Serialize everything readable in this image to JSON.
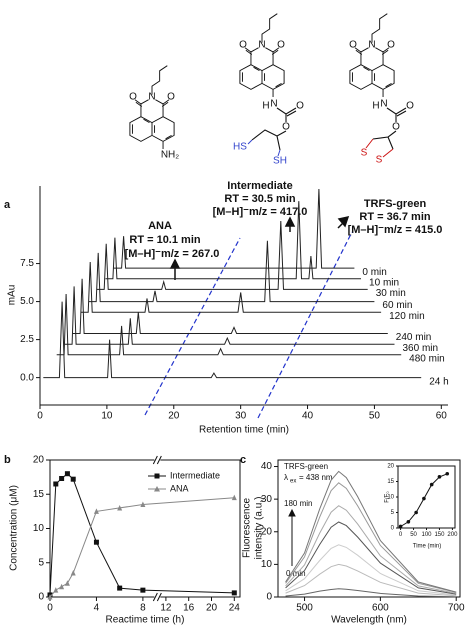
{
  "structures": [
    {
      "labels": [
        "O",
        "N",
        "O",
        "NH₂"
      ]
    },
    {
      "labels": [
        "O",
        "N",
        "O",
        "H",
        "N",
        "O",
        "O",
        "HS",
        "SH"
      ]
    },
    {
      "labels": [
        "O",
        "N",
        "O",
        "H",
        "N",
        "O",
        "O",
        "S",
        "S"
      ]
    }
  ],
  "chart_data": [
    {
      "type": "line",
      "panel": "a",
      "xlabel": "Retention time (min)",
      "ylabel": "mAu",
      "xlim": [
        0,
        61
      ],
      "xticks": [
        0,
        10,
        20,
        30,
        40,
        50,
        60
      ],
      "ylim": [
        -1.8,
        12.6
      ],
      "yticks": [
        {
          "value": 0,
          "label": "0.0"
        },
        {
          "value": 2.5,
          "label": "2.5"
        },
        {
          "value": 5,
          "label": "5.0"
        },
        {
          "value": 7.5,
          "label": "7.5"
        }
      ],
      "legend": "line-end",
      "frame": false,
      "annotations": [
        {
          "title": "ANA",
          "rt": "RT = 10.1 min",
          "mz": "[M–H]⁻m/z  = 267.0"
        },
        {
          "title": "Intermediate",
          "rt": "RT = 30.5 min",
          "mz": "[M–H]⁻m/z = 417.0"
        },
        {
          "title": "TRFS-green",
          "rt": "RT = 36.7 min",
          "mz": "[M–H]⁻m/z = 415.0"
        }
      ],
      "series": [
        {
          "name": "0 min",
          "color": "#222",
          "x": [
            11.0,
            12.2,
            12.5,
            12.8,
            41.3,
            41.7,
            42.1,
            47.0
          ],
          "values": [
            7.2,
            7.2,
            9.3,
            7.2,
            7.2,
            12.4,
            7.2,
            7.2
          ]
        },
        {
          "name": "10 min",
          "color": "#222",
          "x": [
            9.8,
            10.9,
            11.2,
            11.5,
            38.3,
            38.7,
            39.1,
            40.2,
            40.5,
            40.8,
            48.0
          ],
          "values": [
            6.5,
            6.5,
            9.2,
            6.5,
            6.5,
            11.6,
            6.5,
            6.5,
            8.0,
            6.5,
            6.5
          ]
        },
        {
          "name": "30 min",
          "color": "#222",
          "x": [
            8.5,
            9.6,
            9.9,
            10.2,
            18.2,
            18.5,
            18.8,
            35.6,
            36.0,
            36.4,
            49.0
          ],
          "values": [
            5.8,
            5.8,
            8.8,
            5.8,
            5.8,
            6.3,
            5.8,
            5.8,
            10.3,
            5.8,
            5.8
          ]
        },
        {
          "name": "60 min",
          "color": "#222",
          "x": [
            7.3,
            8.4,
            8.7,
            9.0,
            16.9,
            17.2,
            17.5,
            33.6,
            34.0,
            34.4,
            50.0
          ],
          "values": [
            5.0,
            5.0,
            8.2,
            5.0,
            5.0,
            5.7,
            5.0,
            5.0,
            9.0,
            5.0,
            5.0
          ]
        },
        {
          "name": "120 min",
          "color": "#222",
          "x": [
            6.1,
            7.2,
            7.5,
            7.8,
            15.7,
            16.0,
            16.3,
            29.6,
            30.0,
            30.4,
            51.0
          ],
          "values": [
            4.3,
            4.3,
            7.6,
            4.3,
            4.3,
            5.2,
            4.3,
            4.3,
            5.6,
            4.3,
            4.3
          ]
        },
        {
          "name": "240 min",
          "color": "#222",
          "x": [
            4.9,
            6.0,
            6.3,
            6.6,
            14.4,
            14.7,
            15.0,
            28.6,
            29.0,
            29.4,
            52.0
          ],
          "values": [
            2.9,
            2.9,
            6.5,
            2.9,
            2.9,
            4.3,
            2.9,
            2.9,
            3.3,
            2.9,
            2.9
          ]
        },
        {
          "name": "360 min",
          "color": "#222",
          "x": [
            3.7,
            4.8,
            5.1,
            5.4,
            13.2,
            13.5,
            13.8,
            27.6,
            28.0,
            28.4,
            53.0
          ],
          "values": [
            2.2,
            2.2,
            6.0,
            2.2,
            2.2,
            3.9,
            2.2,
            2.2,
            2.6,
            2.2,
            2.2
          ]
        },
        {
          "name": "480 min",
          "color": "#222",
          "x": [
            2.5,
            3.6,
            3.9,
            4.2,
            11.9,
            12.2,
            12.5,
            26.6,
            27.0,
            27.4,
            54.0
          ],
          "values": [
            1.5,
            1.5,
            5.5,
            1.5,
            1.5,
            3.4,
            1.5,
            1.5,
            1.9,
            1.5,
            1.5
          ]
        },
        {
          "name": "24 h",
          "color": "#222",
          "x": [
            0.5,
            2.9,
            3.3,
            3.7,
            10.1,
            10.4,
            10.7,
            25.6,
            26.0,
            26.4,
            57.0
          ],
          "values": [
            0,
            0,
            5.0,
            0,
            0,
            2.5,
            0,
            0,
            0.3,
            0,
            0
          ]
        }
      ]
    },
    {
      "type": "line",
      "panel": "b",
      "xlabel": "Reactime time (h)",
      "ylabel": "Concentration (μM)",
      "xlim": [
        0,
        25
      ],
      "xbreak": [
        9,
        11
      ],
      "xticks": [
        0,
        4,
        8,
        12,
        16,
        20,
        24
      ],
      "ylim": [
        0,
        20
      ],
      "yticks": [
        0,
        5,
        10,
        15,
        20
      ],
      "legend": "upper right",
      "frame": true,
      "series": [
        {
          "name": "Intermediate",
          "color": "#111",
          "marker": "s",
          "x": [
            0,
            0.5,
            1,
            1.5,
            2,
            4,
            6,
            8,
            24
          ],
          "values": [
            0.3,
            16.5,
            17.3,
            18,
            17.2,
            8,
            1.3,
            1.0,
            0.6
          ]
        },
        {
          "name": "ANA",
          "color": "#888",
          "marker": "^",
          "x": [
            0,
            0.5,
            1,
            1.5,
            2,
            4,
            6,
            8,
            24
          ],
          "values": [
            0,
            1,
            1.5,
            2,
            3.5,
            12.5,
            13,
            13.5,
            14.5
          ]
        }
      ]
    },
    {
      "type": "line",
      "panel": "c",
      "xlabel": "Wavelength (nm)",
      "ylabel": [
        "Fluorescence",
        "intensity (a.u.)"
      ],
      "xlim": [
        465,
        705
      ],
      "xticks": [
        500,
        600,
        700
      ],
      "ylim": [
        0,
        42
      ],
      "yticks": [
        0,
        10,
        20,
        30,
        40
      ],
      "frame": true,
      "label": "TRFS-green",
      "excitation": {
        "symbol": "λ",
        "subscript": "ex",
        "text": "= 438 nm"
      },
      "arrow_top": "180 min",
      "arrow_bottom": "0 min",
      "x": [
        475,
        500,
        520,
        535,
        545,
        555,
        570,
        600,
        650,
        700
      ],
      "series": [
        {
          "color": "#666",
          "values": [
            0.3,
            0.9,
            1.8,
            2.3,
            2.5,
            2.4,
            2.0,
            1.1,
            0.3,
            0.1
          ]
        },
        {
          "color": "#bbb",
          "values": [
            1.2,
            3.5,
            7,
            9.3,
            10,
            9.5,
            8,
            4.5,
            1.2,
            0.4
          ]
        },
        {
          "color": "#ccc",
          "values": [
            1.9,
            5.6,
            11.2,
            14.9,
            16,
            15.2,
            12.8,
            7.2,
            1.9,
            0.6
          ]
        },
        {
          "color": "#555",
          "values": [
            2.8,
            8.1,
            16.1,
            21.4,
            23,
            21.9,
            18.4,
            10.4,
            2.8,
            0.9
          ]
        },
        {
          "color": "#aaa",
          "values": [
            3.4,
            9.8,
            19.6,
            26,
            28,
            26.6,
            22.4,
            12.6,
            3.4,
            1.1
          ]
        },
        {
          "color": "#999",
          "values": [
            4.2,
            12.3,
            24.5,
            32.6,
            35,
            33.3,
            28,
            15.8,
            4.2,
            1.4
          ]
        },
        {
          "color": "#777",
          "values": [
            4.6,
            13.5,
            27,
            35.8,
            38.5,
            36.6,
            30.8,
            17.3,
            4.6,
            1.5
          ]
        }
      ],
      "inset": {
        "type": "line",
        "xlabel": "Time (min)",
        "ylabel": "F/F₀",
        "xlim": [
          -10,
          210
        ],
        "xticks": [
          0,
          50,
          100,
          150,
          200
        ],
        "ylim": [
          0,
          20
        ],
        "yticks": [
          0,
          5,
          10,
          15,
          20
        ],
        "frame": true,
        "series": [
          {
            "color": "#111",
            "marker": "o",
            "x": [
              0,
              30,
              60,
              90,
              120,
              150,
              180
            ],
            "values": [
              0.5,
              2,
              5,
              9.5,
              14,
              16.5,
              17.5
            ]
          }
        ]
      }
    }
  ]
}
